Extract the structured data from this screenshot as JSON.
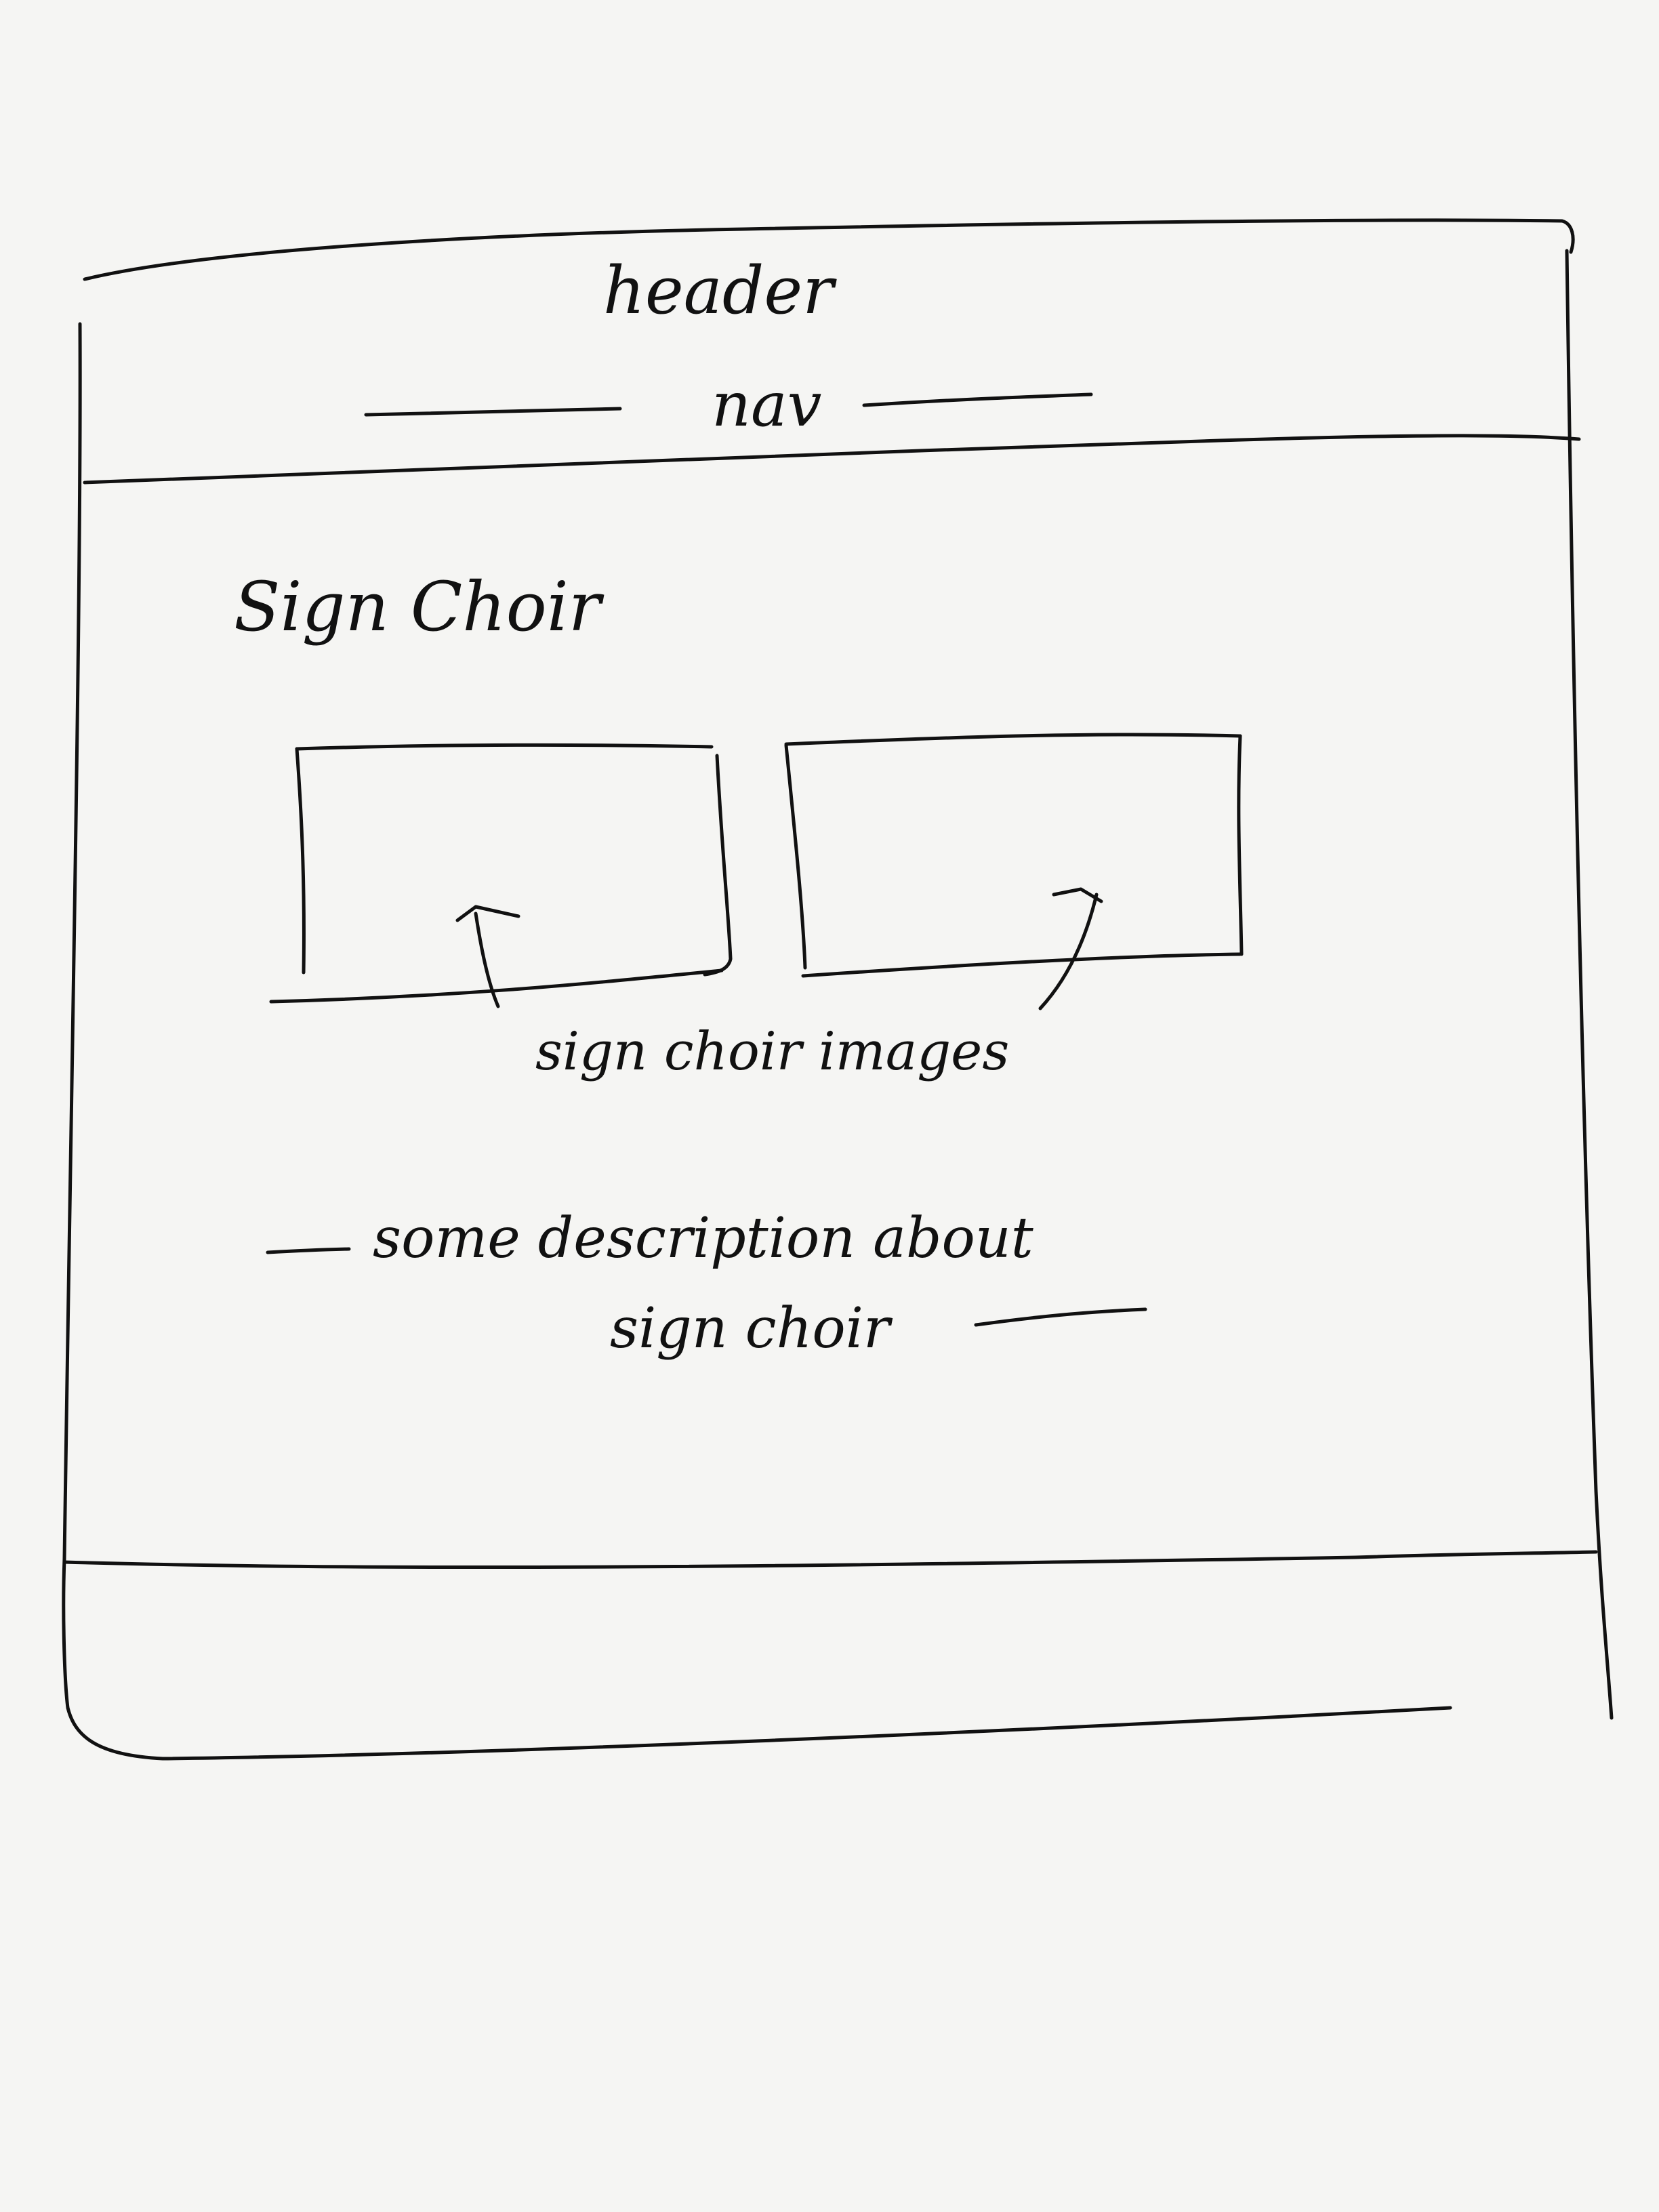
{
  "wireframe": {
    "header_label": "header",
    "nav_label": "nav",
    "section_title": "Sign Choir",
    "images_label": "sign choir images",
    "description_line1": "some description about",
    "description_line2": "sign choir"
  },
  "ink_color": "#111111",
  "paper_color": "#f5f5f3"
}
